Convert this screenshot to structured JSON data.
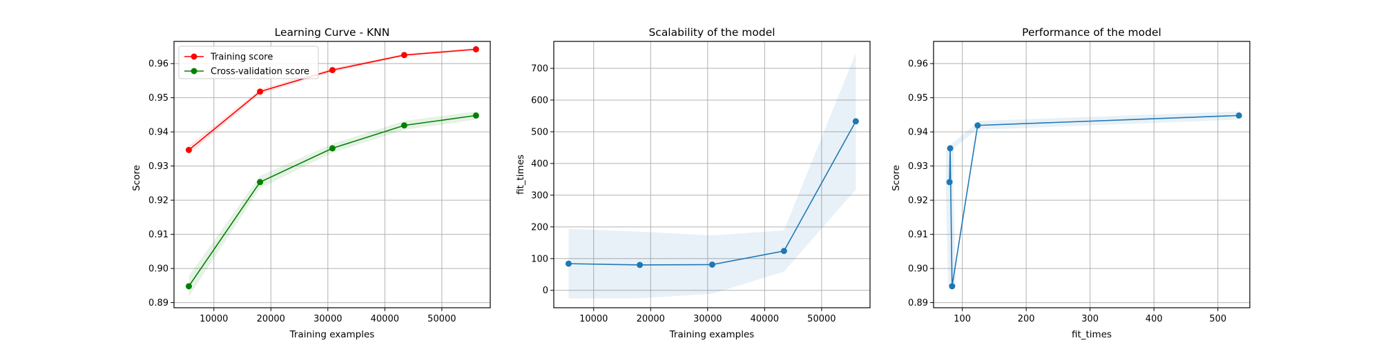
{
  "colors": {
    "training": "#ff0000",
    "cross_validation": "#008000",
    "blue": "#1f77b4",
    "band_training": "#ff0000",
    "band_cv": "#008000",
    "band_blue": "#1f77b4"
  },
  "chart_data": [
    {
      "type": "line",
      "title": "Learning Curve - KNN",
      "xlabel": "Training examples",
      "ylabel": "Score",
      "xlim": [
        3000,
        58500
      ],
      "ylim": [
        0.8885,
        0.9665
      ],
      "xticks": [
        10000,
        20000,
        30000,
        40000,
        50000
      ],
      "yticks": [
        0.89,
        0.9,
        0.91,
        0.92,
        0.93,
        0.94,
        0.95,
        0.96
      ],
      "ytick_labels": [
        "0.89",
        "0.90",
        "0.91",
        "0.92",
        "0.93",
        "0.94",
        "0.95",
        "0.96"
      ],
      "grid": true,
      "legend": "upper-left",
      "x": [
        5600,
        18100,
        30800,
        43400,
        56000
      ],
      "series": [
        {
          "name": "Training score",
          "color": "#ff0000",
          "values": [
            0.9347,
            0.9518,
            0.9581,
            0.9625,
            0.9642
          ],
          "std": [
            0.0012,
            0.0007,
            0.0006,
            0.0004,
            0.0004
          ]
        },
        {
          "name": "Cross-validation score",
          "color": "#008000",
          "values": [
            0.8948,
            0.9253,
            0.9352,
            0.9419,
            0.9448
          ],
          "std": [
            0.003,
            0.0018,
            0.0013,
            0.0013,
            0.0012
          ]
        }
      ]
    },
    {
      "type": "line",
      "title": "Scalability of the model",
      "xlabel": "Training examples",
      "ylabel": "fit_times",
      "xlim": [
        3000,
        58500
      ],
      "ylim": [
        -55,
        785
      ],
      "xticks": [
        10000,
        20000,
        30000,
        40000,
        50000
      ],
      "yticks": [
        0,
        100,
        200,
        300,
        400,
        500,
        600,
        700
      ],
      "ytick_labels": [
        "0",
        "100",
        "200",
        "300",
        "400",
        "500",
        "600",
        "700"
      ],
      "grid": true,
      "x": [
        5600,
        18100,
        30800,
        43400,
        56000
      ],
      "series": [
        {
          "color": "#1f77b4",
          "values": [
            84,
            80,
            81,
            124,
            533
          ],
          "std": [
            110,
            105,
            92,
            65,
            215
          ]
        }
      ]
    },
    {
      "type": "line",
      "title": "Performance of the model",
      "xlabel": "fit_times",
      "ylabel": "Score",
      "xlim": [
        55,
        550
      ],
      "ylim": [
        0.8885,
        0.9665
      ],
      "xticks": [
        100,
        200,
        300,
        400,
        500
      ],
      "yticks": [
        0.89,
        0.9,
        0.91,
        0.92,
        0.93,
        0.94,
        0.95,
        0.96
      ],
      "ytick_labels": [
        "0.89",
        "0.90",
        "0.91",
        "0.92",
        "0.93",
        "0.94",
        "0.95",
        "0.96"
      ],
      "grid": true,
      "x": [
        80,
        81,
        84,
        124,
        533
      ],
      "series": [
        {
          "color": "#1f77b4",
          "values": [
            0.9253,
            0.9352,
            0.8948,
            0.9419,
            0.9448
          ],
          "std": [
            0.0018,
            0.0013,
            0.003,
            0.0013,
            0.0012
          ]
        }
      ]
    }
  ]
}
